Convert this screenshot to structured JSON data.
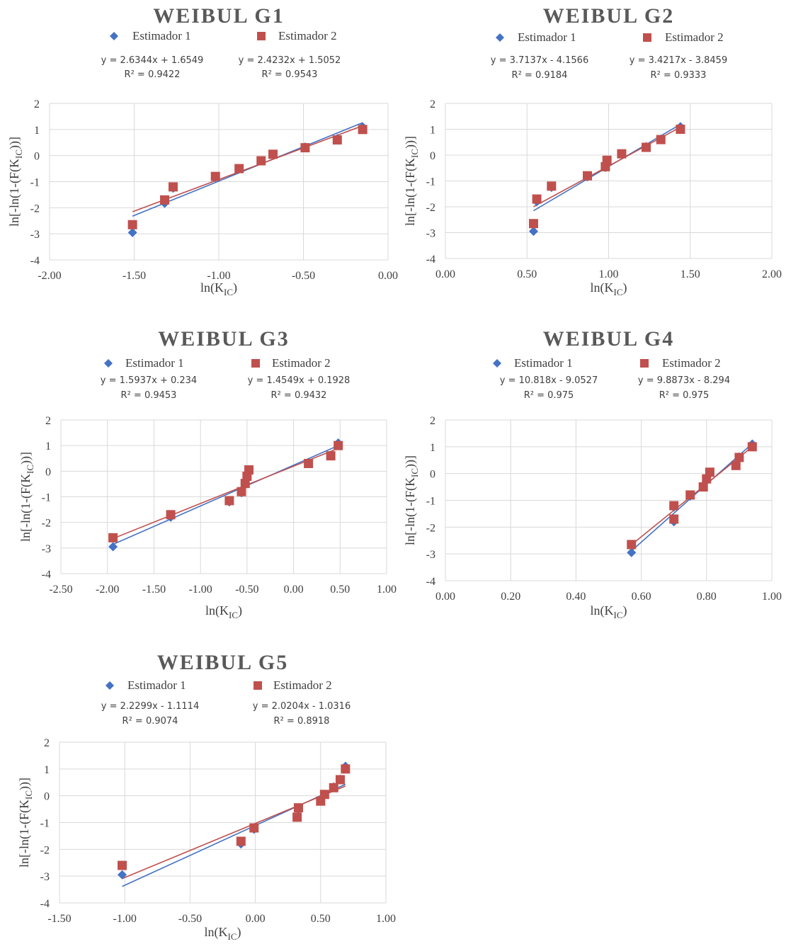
{
  "colors": {
    "series1": "#4472C4",
    "series2": "#C0504D",
    "title": "#595959",
    "grid": "#d9d9d9",
    "text": "#404040"
  },
  "chart_data": [
    {
      "type": "scatter",
      "title": "WEIBUL G1",
      "xlabel": "ln(K",
      "xlabel_sub": "IC",
      "xlabel_end": ")",
      "ylabel": "ln[-ln(1-(F(K",
      "ylabel_sub": "IC",
      "ylabel_end": "))]",
      "xlim": [
        -2.0,
        0.0
      ],
      "xstep": 0.5,
      "ylim": [
        -4,
        2
      ],
      "ystep": 1,
      "xdec": 2,
      "grid": true,
      "legend_position": "top",
      "series": [
        {
          "name": "Estimador 1",
          "marker": "diamond",
          "trendline": {
            "equation": "y = 2.6344x + 1.6549",
            "r2": "R² = 0.9422",
            "slope": 2.6344,
            "intercept": 1.6549
          },
          "points": [
            [
              -1.51,
              -2.95
            ],
            [
              -1.32,
              -1.83
            ],
            [
              -1.27,
              -1.25
            ],
            [
              -1.02,
              -0.84
            ],
            [
              -0.88,
              -0.5
            ],
            [
              -0.75,
              -0.2
            ],
            [
              -0.68,
              0.05
            ],
            [
              -0.49,
              0.33
            ],
            [
              -0.3,
              0.65
            ],
            [
              -0.15,
              1.1
            ]
          ]
        },
        {
          "name": "Estimador 2",
          "marker": "square",
          "trendline": {
            "equation": "y = 2.4232x + 1.5052",
            "r2": "R² = 0.9543",
            "slope": 2.4232,
            "intercept": 1.5052
          },
          "points": [
            [
              -1.51,
              -2.65
            ],
            [
              -1.32,
              -1.7
            ],
            [
              -1.27,
              -1.2
            ],
            [
              -1.02,
              -0.8
            ],
            [
              -0.88,
              -0.5
            ],
            [
              -0.75,
              -0.2
            ],
            [
              -0.68,
              0.05
            ],
            [
              -0.49,
              0.3
            ],
            [
              -0.3,
              0.6
            ],
            [
              -0.15,
              1.0
            ]
          ]
        }
      ]
    },
    {
      "type": "scatter",
      "title": "WEIBUL G2",
      "xlabel": "ln(K",
      "xlabel_sub": "IC",
      "xlabel_end": ")",
      "ylabel": "ln[-ln(1-(F(K",
      "ylabel_sub": "IC",
      "ylabel_end": "))]",
      "xlim": [
        0.0,
        2.0
      ],
      "xstep": 0.5,
      "ylim": [
        -4,
        2
      ],
      "ystep": 1,
      "xdec": 2,
      "grid": true,
      "legend_position": "top",
      "series": [
        {
          "name": "Estimador 1",
          "marker": "diamond",
          "trendline": {
            "equation": "y = 3.7137x - 4.1566",
            "r2": "R² = 0.9184",
            "slope": 3.7137,
            "intercept": -4.1566
          },
          "points": [
            [
              0.54,
              -2.95
            ],
            [
              0.56,
              -1.8
            ],
            [
              0.65,
              -1.25
            ],
            [
              0.87,
              -0.84
            ],
            [
              0.98,
              -0.48
            ],
            [
              0.99,
              -0.22
            ],
            [
              1.08,
              0.05
            ],
            [
              1.23,
              0.33
            ],
            [
              1.32,
              0.62
            ],
            [
              1.44,
              1.1
            ]
          ]
        },
        {
          "name": "Estimador 2",
          "marker": "square",
          "trendline": {
            "equation": "y = 3.4217x - 3.8459",
            "r2": "R² = 0.9333",
            "slope": 3.4217,
            "intercept": -3.8459
          },
          "points": [
            [
              0.54,
              -2.65
            ],
            [
              0.56,
              -1.7
            ],
            [
              0.65,
              -1.2
            ],
            [
              0.87,
              -0.8
            ],
            [
              0.98,
              -0.45
            ],
            [
              0.99,
              -0.2
            ],
            [
              1.08,
              0.05
            ],
            [
              1.23,
              0.3
            ],
            [
              1.32,
              0.6
            ],
            [
              1.44,
              1.0
            ]
          ]
        }
      ]
    },
    {
      "type": "scatter",
      "title": "WEIBUL G3",
      "xlabel": "ln(K",
      "xlabel_sub": "IC",
      "xlabel_end": ")",
      "ylabel": "ln[-ln(1-(F(K",
      "ylabel_sub": "IC",
      "ylabel_end": "))]",
      "xlim": [
        -2.5,
        1.0
      ],
      "xstep": 0.5,
      "ylim": [
        -4,
        2
      ],
      "ystep": 1,
      "xdec": 2,
      "grid": true,
      "legend_position": "top",
      "series": [
        {
          "name": "Estimador 1",
          "marker": "diamond",
          "trendline": {
            "equation": "y = 1.5937x + 0.234",
            "r2": "R² = 0.9453",
            "slope": 1.5937,
            "intercept": 0.234
          },
          "points": [
            [
              -1.94,
              -2.95
            ],
            [
              -1.32,
              -1.8
            ],
            [
              -0.69,
              -1.2
            ],
            [
              -0.56,
              -0.84
            ],
            [
              -0.52,
              -0.5
            ],
            [
              -0.5,
              -0.22
            ],
            [
              -0.48,
              0.05
            ],
            [
              0.16,
              0.33
            ],
            [
              0.4,
              0.62
            ],
            [
              0.48,
              1.1
            ]
          ]
        },
        {
          "name": "Estimador 2",
          "marker": "square",
          "trendline": {
            "equation": "y = 1.4549x + 0.1928",
            "r2": "R² = 0.9432",
            "slope": 1.4549,
            "intercept": 0.1928
          },
          "points": [
            [
              -1.94,
              -2.6
            ],
            [
              -1.32,
              -1.7
            ],
            [
              -0.69,
              -1.15
            ],
            [
              -0.56,
              -0.8
            ],
            [
              -0.52,
              -0.48
            ],
            [
              -0.5,
              -0.2
            ],
            [
              -0.48,
              0.05
            ],
            [
              0.16,
              0.3
            ],
            [
              0.4,
              0.6
            ],
            [
              0.48,
              1.0
            ]
          ]
        }
      ]
    },
    {
      "type": "scatter",
      "title": "WEIBUL G4",
      "xlabel": "ln(K",
      "xlabel_sub": "IC",
      "xlabel_end": ")",
      "ylabel": "ln[-ln(1-(F(K",
      "ylabel_sub": "IC",
      "ylabel_end": "))]",
      "xlim": [
        0.0,
        1.0
      ],
      "xstep": 0.2,
      "ylim": [
        -4,
        2
      ],
      "ystep": 1,
      "xdec": 2,
      "grid": true,
      "legend_position": "top",
      "series": [
        {
          "name": "Estimador 1",
          "marker": "diamond",
          "trendline": {
            "equation": "y = 10.818x - 9.0527",
            "r2": "R² = 0.975",
            "slope": 10.818,
            "intercept": -9.0527
          },
          "points": [
            [
              0.57,
              -2.95
            ],
            [
              0.7,
              -1.8
            ],
            [
              0.7,
              -1.25
            ],
            [
              0.75,
              -0.84
            ],
            [
              0.79,
              -0.5
            ],
            [
              0.8,
              -0.22
            ],
            [
              0.81,
              0.05
            ],
            [
              0.89,
              0.33
            ],
            [
              0.9,
              0.62
            ],
            [
              0.94,
              1.1
            ]
          ]
        },
        {
          "name": "Estimador 2",
          "marker": "square",
          "trendline": {
            "equation": "y = 9.8873x - 8.294",
            "r2": "R² = 0.975",
            "slope": 9.8873,
            "intercept": -8.294
          },
          "points": [
            [
              0.57,
              -2.65
            ],
            [
              0.7,
              -1.7
            ],
            [
              0.7,
              -1.2
            ],
            [
              0.75,
              -0.8
            ],
            [
              0.79,
              -0.5
            ],
            [
              0.8,
              -0.2
            ],
            [
              0.81,
              0.05
            ],
            [
              0.89,
              0.3
            ],
            [
              0.9,
              0.6
            ],
            [
              0.94,
              1.0
            ]
          ]
        }
      ]
    },
    {
      "type": "scatter",
      "title": "WEIBUL G5",
      "xlabel": "ln(K",
      "xlabel_sub": "IC",
      "xlabel_end": ")",
      "ylabel": "ln[-ln(1-(F(K",
      "ylabel_sub": "IC",
      "ylabel_end": "))]",
      "xlim": [
        -1.5,
        1.0
      ],
      "xstep": 0.5,
      "ylim": [
        -4,
        2
      ],
      "ystep": 1,
      "xdec": 2,
      "grid": true,
      "legend_position": "top",
      "series": [
        {
          "name": "Estimador 1",
          "marker": "diamond",
          "trendline": {
            "equation": "y = 2.2299x - 1.1114",
            "r2": "R² = 0.9074",
            "slope": 2.2299,
            "intercept": -1.1114
          },
          "points": [
            [
              -1.02,
              -2.95
            ],
            [
              -0.11,
              -1.8
            ],
            [
              -0.01,
              -1.25
            ],
            [
              0.32,
              -0.8
            ],
            [
              0.33,
              -0.5
            ],
            [
              0.5,
              -0.2
            ],
            [
              0.53,
              0.05
            ],
            [
              0.6,
              0.33
            ],
            [
              0.65,
              0.62
            ],
            [
              0.69,
              1.1
            ]
          ]
        },
        {
          "name": "Estimador 2",
          "marker": "square",
          "trendline": {
            "equation": "y = 2.0204x - 1.0316",
            "r2": "R² = 0.8918",
            "slope": 2.0204,
            "intercept": -1.0316
          },
          "points": [
            [
              -1.02,
              -2.6
            ],
            [
              -0.11,
              -1.7
            ],
            [
              -0.01,
              -1.2
            ],
            [
              0.32,
              -0.8
            ],
            [
              0.33,
              -0.45
            ],
            [
              0.5,
              -0.2
            ],
            [
              0.53,
              0.05
            ],
            [
              0.6,
              0.3
            ],
            [
              0.65,
              0.6
            ],
            [
              0.69,
              1.0
            ]
          ]
        }
      ]
    }
  ]
}
